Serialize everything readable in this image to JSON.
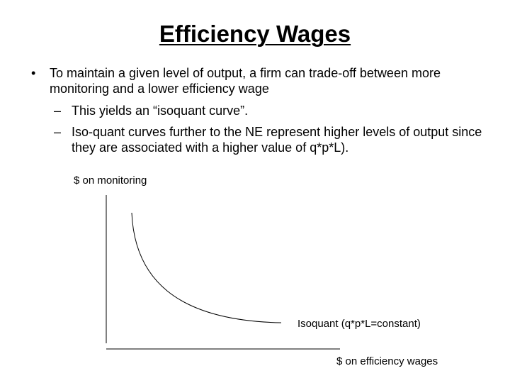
{
  "title": "Efficiency Wages",
  "bullets": {
    "marker": "•",
    "main": "To maintain a given level of output, a firm can trade-off between more monitoring and a lower efficiency wage",
    "sub_marker": "–",
    "sub": [
      "This yields an “isoquant curve”.",
      "Iso-quant curves further to the NE represent higher levels of output since they are associated with a higher value of q*p*L)."
    ]
  },
  "diagram": {
    "y_axis_label": "$ on monitoring",
    "x_axis_label": "$ on efficiency wages",
    "curve_label": "Isoquant (q*p*L=constant)"
  }
}
